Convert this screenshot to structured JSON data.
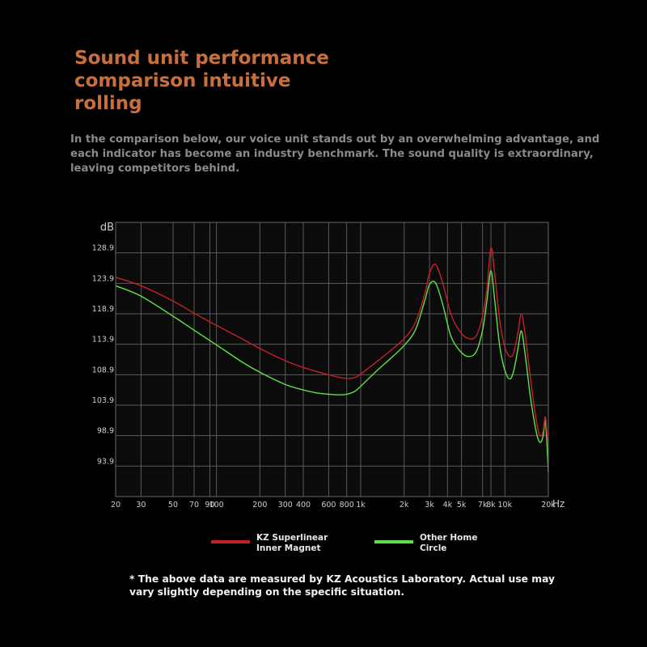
{
  "header": {
    "title": "Sound unit performance comparison intuitive rolling",
    "subtitle": "In the comparison below, our voice unit stands out by an overwhelming advantage, and each indicator has become an industry benchmark. The sound quality is extraordinary, leaving competitors behind."
  },
  "colors": {
    "title": "#c8703d",
    "series_kz": "#c42126",
    "series_other": "#5fe04a",
    "grid": "#5a5a5a",
    "plot_bg": "#0b0b0b"
  },
  "chart_data": {
    "type": "line",
    "title": "",
    "xlabel": "Hz",
    "ylabel": "dB",
    "xscale": "log",
    "xlim": [
      20,
      20000
    ],
    "ylim": [
      88.9,
      133.9
    ],
    "grid": true,
    "y_ticks": [
      93.9,
      98.9,
      103.9,
      108.9,
      113.9,
      118.9,
      123.9,
      128.9
    ],
    "y_tick_labels": [
      "93.9",
      "98.9",
      "103.9",
      "108.9",
      "113.9",
      "118.9",
      "123.9",
      "128.9"
    ],
    "x_ticks": [
      20,
      30,
      50,
      70,
      90,
      100,
      200,
      300,
      400,
      600,
      800,
      1000,
      2000,
      3000,
      4000,
      5000,
      7000,
      8000,
      10000,
      20000
    ],
    "x_tick_labels": [
      "20",
      "30",
      "50",
      "70",
      "90",
      "100",
      "200",
      "300",
      "400",
      "600",
      "800",
      "1k",
      "2k",
      "3k",
      "4k",
      "5k",
      "7k",
      "8k",
      "10k",
      "20k"
    ],
    "legend_position": "bottom",
    "series": [
      {
        "name": "KZ Superlinear Inner Magnet",
        "color": "#c42126",
        "x": [
          20,
          30,
          50,
          70,
          100,
          150,
          200,
          300,
          400,
          500,
          600,
          700,
          800,
          900,
          1000,
          1300,
          1600,
          2000,
          2400,
          2800,
          3000,
          3300,
          3700,
          4200,
          4800,
          5500,
          6300,
          7000,
          7500,
          8000,
          8500,
          9200,
          10000,
          10800,
          11500,
          12300,
          13000,
          13800,
          15000,
          16500,
          17500,
          18400,
          19000,
          19500,
          20000
        ],
        "values": [
          124.9,
          123.5,
          121.0,
          119.0,
          117.0,
          114.8,
          113.2,
          111.2,
          110.1,
          109.4,
          108.9,
          108.5,
          108.3,
          108.4,
          109.0,
          111.1,
          112.8,
          114.8,
          117.5,
          122.4,
          125.6,
          127.0,
          124.0,
          119.0,
          116.2,
          114.9,
          115.2,
          118.5,
          122.9,
          129.7,
          125.5,
          117.8,
          113.4,
          111.9,
          112.5,
          115.7,
          118.9,
          115.6,
          108.5,
          101.4,
          98.9,
          99.6,
          102.0,
          99.9,
          96.6
        ]
      },
      {
        "name": "Other Home Circle",
        "color": "#5fe04a",
        "x": [
          20,
          30,
          50,
          70,
          100,
          150,
          200,
          300,
          400,
          500,
          600,
          700,
          800,
          900,
          1000,
          1300,
          1600,
          2000,
          2400,
          2800,
          3000,
          3300,
          3700,
          4200,
          4800,
          5500,
          6300,
          7000,
          7500,
          8000,
          8500,
          9200,
          10000,
          10800,
          11500,
          12300,
          13000,
          13800,
          15000,
          16500,
          17500,
          18400,
          19000,
          19500,
          20000
        ],
        "values": [
          123.5,
          121.8,
          118.5,
          116.2,
          113.8,
          111.0,
          109.3,
          107.3,
          106.4,
          105.9,
          105.7,
          105.6,
          105.7,
          106.1,
          107.0,
          109.6,
          111.5,
          113.7,
          116.3,
          121.3,
          123.7,
          124.0,
          120.5,
          115.4,
          113.0,
          111.9,
          112.6,
          116.2,
          121.0,
          126.0,
          121.1,
          113.6,
          109.6,
          108.2,
          109.5,
          113.1,
          116.1,
          112.3,
          105.4,
          99.5,
          97.8,
          98.8,
          101.4,
          98.2,
          92.9
        ]
      }
    ]
  },
  "footnote": "* The above data are measured by KZ Acoustics Laboratory. Actual use may vary slightly depending on the specific situation."
}
